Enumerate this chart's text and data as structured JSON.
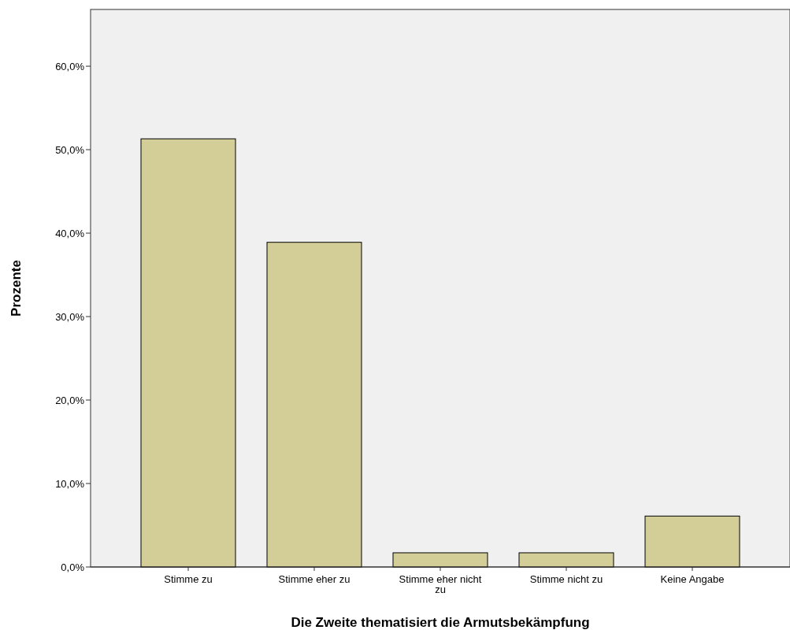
{
  "chart_data": {
    "type": "bar",
    "xlabel": "Die Zweite thematisiert die Armutsbekämpfung",
    "ylabel": "Prozente",
    "categories": [
      "Stimme zu",
      "Stimme eher zu",
      "Stimme eher nicht zu",
      "Stimme nicht zu",
      "Keine Angabe"
    ],
    "values": [
      51.3,
      38.9,
      1.7,
      1.7,
      6.1
    ],
    "color": "#d3ce97",
    "ylim": [
      0,
      66.8
    ],
    "yticks": [
      {
        "value": 0,
        "label": "0,0%"
      },
      {
        "value": 10,
        "label": "10,0%"
      },
      {
        "value": 20,
        "label": "20,0%"
      },
      {
        "value": 30,
        "label": "30,0%"
      },
      {
        "value": 40,
        "label": "40,0%"
      },
      {
        "value": 50,
        "label": "50,0%"
      },
      {
        "value": 60,
        "label": "60,0%"
      }
    ]
  }
}
